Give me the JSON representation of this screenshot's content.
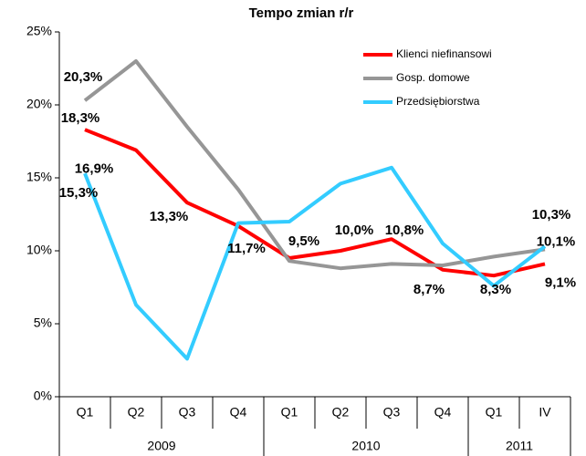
{
  "chart_data": {
    "type": "line",
    "title": "Tempo zmian r/r",
    "categories": [
      "Q1",
      "Q2",
      "Q3",
      "Q4",
      "Q1",
      "Q2",
      "Q3",
      "Q4",
      "Q1",
      "IV"
    ],
    "groups": [
      {
        "label": "2009",
        "span": 4
      },
      {
        "label": "2010",
        "span": 4
      },
      {
        "label": "2011",
        "span": 2
      }
    ],
    "series": [
      {
        "name": "Klienci niefinansowi",
        "color": "#ff0000",
        "values": [
          18.3,
          16.9,
          13.3,
          11.7,
          9.5,
          10.0,
          10.8,
          8.7,
          8.3,
          9.1
        ],
        "value_labels": [
          "18,3%",
          "16,9%",
          "13,3%",
          "11,7%",
          "9,5%",
          "10,0%",
          "10,8%",
          "8,7%",
          "8,3%",
          "9,1%"
        ]
      },
      {
        "name": "Gosp. domowe",
        "color": "#969696",
        "values": [
          20.3,
          23.0,
          18.5,
          14.2,
          9.3,
          8.8,
          9.1,
          9.0,
          9.6,
          10.1
        ],
        "value_labels": [
          "20,3%",
          null,
          null,
          null,
          null,
          null,
          null,
          null,
          null,
          "10,1%"
        ]
      },
      {
        "name": "Przedsiębiorstwa",
        "color": "#33ccff",
        "values": [
          15.3,
          6.3,
          2.6,
          11.9,
          12.0,
          14.6,
          15.7,
          10.5,
          7.6,
          10.3
        ],
        "value_labels": [
          "15,3%",
          null,
          null,
          null,
          null,
          null,
          null,
          null,
          null,
          "10,3%"
        ]
      }
    ],
    "ylim": [
      0,
      25
    ],
    "yticks": [
      {
        "value": 0,
        "label": "0%"
      },
      {
        "value": 5,
        "label": "5%"
      },
      {
        "value": 10,
        "label": "10%"
      },
      {
        "value": 15,
        "label": "15%"
      },
      {
        "value": 20,
        "label": "20%"
      },
      {
        "value": 25,
        "label": "25%"
      }
    ],
    "legend": "upper right"
  }
}
